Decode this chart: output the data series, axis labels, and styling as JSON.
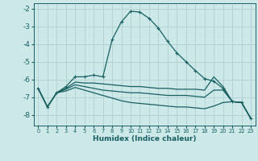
{
  "xlabel": "Humidex (Indice chaleur)",
  "xlim": [
    -0.5,
    23.5
  ],
  "ylim": [
    -8.6,
    -1.7
  ],
  "yticks": [
    -8,
    -7,
    -6,
    -5,
    -4,
    -3,
    -2
  ],
  "xticks": [
    0,
    1,
    2,
    3,
    4,
    5,
    6,
    7,
    8,
    9,
    10,
    11,
    12,
    13,
    14,
    15,
    16,
    17,
    18,
    19,
    20,
    21,
    22,
    23
  ],
  "bg_color": "#cce8e8",
  "grid_color": "#aacccc",
  "line_color": "#1a6060",
  "lines": [
    {
      "x": [
        0,
        1,
        2,
        3,
        4,
        5,
        6,
        7,
        8,
        9,
        10,
        11,
        12,
        13,
        14,
        15,
        16,
        17,
        18,
        19,
        20,
        21,
        22,
        23
      ],
      "y": [
        -6.5,
        -7.55,
        -6.75,
        -6.4,
        -5.85,
        -5.85,
        -5.75,
        -5.85,
        -3.75,
        -2.75,
        -2.15,
        -2.2,
        -2.55,
        -3.1,
        -3.85,
        -4.5,
        -5.0,
        -5.5,
        -5.95,
        -6.1,
        -6.5,
        -7.25,
        -7.3,
        -8.2
      ],
      "marker": "+"
    },
    {
      "x": [
        0,
        1,
        2,
        3,
        4,
        5,
        6,
        7,
        8,
        9,
        10,
        11,
        12,
        13,
        14,
        15,
        16,
        17,
        18,
        19,
        20,
        21,
        22,
        23
      ],
      "y": [
        -6.5,
        -7.55,
        -6.75,
        -6.5,
        -6.15,
        -6.2,
        -6.2,
        -6.25,
        -6.3,
        -6.35,
        -6.4,
        -6.4,
        -6.45,
        -6.5,
        -6.5,
        -6.55,
        -6.55,
        -6.55,
        -6.6,
        -5.85,
        -6.4,
        -7.25,
        -7.3,
        -8.2
      ],
      "marker": null
    },
    {
      "x": [
        0,
        1,
        2,
        3,
        4,
        5,
        6,
        7,
        8,
        9,
        10,
        11,
        12,
        13,
        14,
        15,
        16,
        17,
        18,
        19,
        20,
        21,
        22,
        23
      ],
      "y": [
        -6.5,
        -7.55,
        -6.75,
        -6.55,
        -6.3,
        -6.4,
        -6.5,
        -6.6,
        -6.65,
        -6.7,
        -6.75,
        -6.75,
        -6.8,
        -6.85,
        -6.9,
        -6.9,
        -6.9,
        -6.95,
        -7.0,
        -6.6,
        -6.6,
        -7.25,
        -7.3,
        -8.2
      ],
      "marker": null
    },
    {
      "x": [
        0,
        1,
        2,
        3,
        4,
        5,
        6,
        7,
        8,
        9,
        10,
        11,
        12,
        13,
        14,
        15,
        16,
        17,
        18,
        19,
        20,
        21,
        22,
        23
      ],
      "y": [
        -6.5,
        -7.55,
        -6.75,
        -6.65,
        -6.45,
        -6.6,
        -6.75,
        -6.9,
        -7.05,
        -7.2,
        -7.3,
        -7.35,
        -7.4,
        -7.45,
        -7.5,
        -7.55,
        -7.55,
        -7.6,
        -7.65,
        -7.5,
        -7.3,
        -7.25,
        -7.3,
        -8.2
      ],
      "marker": null
    }
  ]
}
